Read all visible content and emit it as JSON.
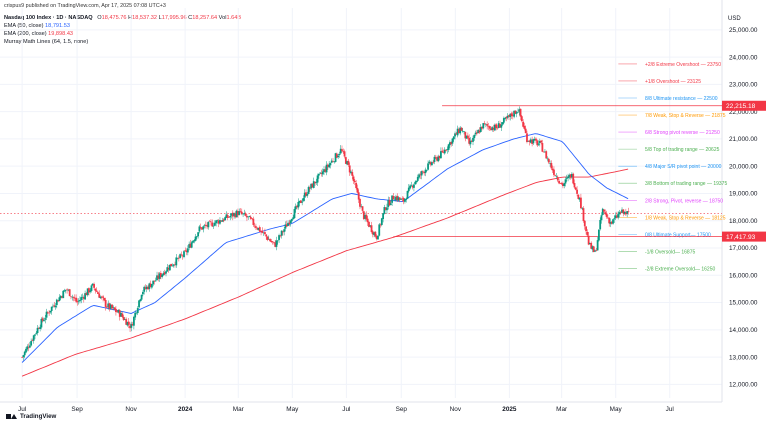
{
  "header": {
    "publish_line": "crispus9 published on TradingView.com, Apr 17, 2025 07:08 UTC+3",
    "symbol_title": "Nasdaq 100 Index · 1D · NASDAQ",
    "o_label": "O",
    "o_value": "18,475.76",
    "h_label": "H",
    "h_value": "18,537.32",
    "l_label": "L",
    "l_value": "17,995.96",
    "c_label": "C",
    "c_value": "18,257.64",
    "vol_label": "Vol",
    "vol_value": "1.64B",
    "ema50_label": "EMA (50, close)",
    "ema50_value": "18,791.53",
    "ema200_label": "EMA (200, close)",
    "ema200_value": "19,898.43",
    "murrey_label": "Murray Math Lines (64, 1.5, none)"
  },
  "footer": {
    "logo_text": "TradingView"
  },
  "colors": {
    "up": "#089981",
    "down": "#f23645",
    "ema50": "#2962ff",
    "ema200": "#f23645",
    "grid": "#f0f3fa",
    "hline": "#f23645",
    "price_tag_bg": "#f23645"
  },
  "chart_data": {
    "type": "candlestick",
    "y_axis_currency": "USD",
    "ylim": [
      11500,
      25800
    ],
    "y_ticks": [
      "12,000.00",
      "13,000.00",
      "14,000.00",
      "15,000.00",
      "16,000.00",
      "17,000.00",
      "18,000.00",
      "19,000.00",
      "20,000.00",
      "21,000.00",
      "22,000.00",
      "23,000.00",
      "24,000.00",
      "25,000.00"
    ],
    "y_tick_values": [
      12000,
      13000,
      14000,
      15000,
      16000,
      17000,
      18000,
      19000,
      20000,
      21000,
      22000,
      23000,
      24000,
      25000
    ],
    "x_ticks": [
      "Jul",
      "Sep",
      "Nov",
      "2024",
      "Mar",
      "May",
      "Jul",
      "Sep",
      "Nov",
      "2025",
      "Mar",
      "May",
      "Jul"
    ],
    "x_tick_bold": [
      false,
      false,
      false,
      true,
      false,
      false,
      false,
      false,
      false,
      true,
      false,
      false,
      false
    ],
    "x_tick_days": [
      0,
      62,
      123,
      184,
      244,
      305,
      366,
      428,
      489,
      550,
      609,
      670,
      731
    ],
    "x_start": "2023-06-01",
    "last_day": 685,
    "price_tags": [
      {
        "label": "22,215.18",
        "value": 22215.18
      },
      {
        "label": "17,417.93",
        "value": 17417.93
      }
    ],
    "horizontal_lines": [
      {
        "value": 22215.18,
        "from_day": 474
      },
      {
        "value": 17417.93,
        "from_day": 419
      }
    ],
    "dotted_line": 18257.64,
    "close_keypoints": [
      [
        0,
        13000
      ],
      [
        20,
        14200
      ],
      [
        35,
        14900
      ],
      [
        50,
        15500
      ],
      [
        62,
        15000
      ],
      [
        80,
        15600
      ],
      [
        95,
        14900
      ],
      [
        110,
        14600
      ],
      [
        123,
        14100
      ],
      [
        135,
        15400
      ],
      [
        150,
        15800
      ],
      [
        165,
        16300
      ],
      [
        184,
        16800
      ],
      [
        200,
        17700
      ],
      [
        215,
        17900
      ],
      [
        230,
        18100
      ],
      [
        244,
        18300
      ],
      [
        255,
        18100
      ],
      [
        270,
        17600
      ],
      [
        285,
        17100
      ],
      [
        305,
        18200
      ],
      [
        320,
        19000
      ],
      [
        340,
        19800
      ],
      [
        360,
        20600
      ],
      [
        372,
        19700
      ],
      [
        385,
        18200
      ],
      [
        400,
        17400
      ],
      [
        410,
        18500
      ],
      [
        420,
        18900
      ],
      [
        430,
        18700
      ],
      [
        440,
        19300
      ],
      [
        455,
        19900
      ],
      [
        475,
        20500
      ],
      [
        495,
        21400
      ],
      [
        505,
        20800
      ],
      [
        520,
        21500
      ],
      [
        535,
        21400
      ],
      [
        550,
        21800
      ],
      [
        560,
        22100
      ],
      [
        570,
        21000
      ],
      [
        585,
        20800
      ],
      [
        600,
        19800
      ],
      [
        610,
        19300
      ],
      [
        620,
        19700
      ],
      [
        630,
        18700
      ],
      [
        640,
        17100
      ],
      [
        647,
        16800
      ],
      [
        655,
        18400
      ],
      [
        665,
        17900
      ],
      [
        675,
        18300
      ],
      [
        685,
        18258
      ]
    ],
    "ema50_keypoints": [
      [
        0,
        12800
      ],
      [
        40,
        14100
      ],
      [
        80,
        14900
      ],
      [
        123,
        14600
      ],
      [
        150,
        15000
      ],
      [
        184,
        15900
      ],
      [
        230,
        17200
      ],
      [
        280,
        17700
      ],
      [
        305,
        17900
      ],
      [
        350,
        18800
      ],
      [
        372,
        19000
      ],
      [
        400,
        18800
      ],
      [
        430,
        18700
      ],
      [
        480,
        19900
      ],
      [
        520,
        20600
      ],
      [
        555,
        21000
      ],
      [
        580,
        21200
      ],
      [
        610,
        20900
      ],
      [
        640,
        19700
      ],
      [
        660,
        19200
      ],
      [
        685,
        18792
      ]
    ],
    "ema200_keypoints": [
      [
        0,
        12300
      ],
      [
        60,
        13100
      ],
      [
        123,
        13700
      ],
      [
        184,
        14400
      ],
      [
        244,
        15200
      ],
      [
        305,
        16100
      ],
      [
        366,
        16900
      ],
      [
        420,
        17400
      ],
      [
        480,
        18100
      ],
      [
        540,
        18900
      ],
      [
        580,
        19400
      ],
      [
        610,
        19600
      ],
      [
        640,
        19600
      ],
      [
        685,
        19898
      ]
    ],
    "murrey_levels": [
      {
        "label": "+2/8 Extreme Overshoot — 23750",
        "value": 23750,
        "color": "#f23645"
      },
      {
        "label": "+1/8 Overshoot — 23125",
        "value": 23125,
        "color": "#f23645"
      },
      {
        "label": "8/8 Ultimate resistance — 22500",
        "value": 22500,
        "color": "#2196f3"
      },
      {
        "label": "7/8 Weak, Stop & Reverse — 21875",
        "value": 21875,
        "color": "#ff9800"
      },
      {
        "label": "6/8 Strong pivot reverse — 21250",
        "value": 21250,
        "color": "#e040fb"
      },
      {
        "label": "5/8 Top of trading range — 20625",
        "value": 20625,
        "color": "#4caf50"
      },
      {
        "label": "4/8 Major S/R pivot point — 20000",
        "value": 20000,
        "color": "#2196f3"
      },
      {
        "label": "3/8 Bottom of trading range — 19375",
        "value": 19375,
        "color": "#4caf50"
      },
      {
        "label": "2/8 Strong, Pivot, reverse — 18750",
        "value": 18750,
        "color": "#e040fb"
      },
      {
        "label": "1/8 Weak, Stop & Reverse — 18125",
        "value": 18125,
        "color": "#ff9800"
      },
      {
        "label": "0/8 Ultimate Support— 17500",
        "value": 17500,
        "color": "#2196f3"
      },
      {
        "label": "-1/8 Oversold— 16875",
        "value": 16875,
        "color": "#4caf50"
      },
      {
        "label": "-2/8 Extreme Oversold— 16250",
        "value": 16250,
        "color": "#4caf50"
      }
    ]
  }
}
